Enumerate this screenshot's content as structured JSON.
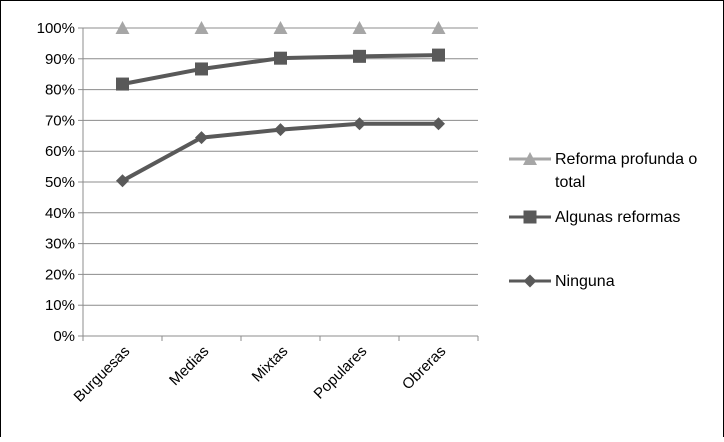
{
  "chart_data": {
    "type": "line",
    "title": "",
    "xlabel": "",
    "ylabel": "",
    "categories": [
      "Burguesas",
      "Medias",
      "Mixtas",
      "Populares",
      "Obreras"
    ],
    "ylim": [
      0,
      100
    ],
    "y_ticks": [
      "0%",
      "10%",
      "20%",
      "30%",
      "40%",
      "50%",
      "60%",
      "70%",
      "80%",
      "90%",
      "100%"
    ],
    "grid": true,
    "legend_position": "right",
    "series": [
      {
        "name": "Reforma profunda o total",
        "marker": "triangle",
        "color": "#a6a6a6",
        "values": [
          100,
          100,
          100,
          100,
          100
        ]
      },
      {
        "name": "Algunas reformas",
        "marker": "square",
        "color": "#595959",
        "values": [
          81.8,
          86.7,
          90.2,
          90.8,
          91.2
        ]
      },
      {
        "name": "Ninguna",
        "marker": "diamond",
        "color": "#595959",
        "values": [
          50.4,
          64.4,
          67.0,
          68.9,
          68.9
        ]
      }
    ]
  }
}
